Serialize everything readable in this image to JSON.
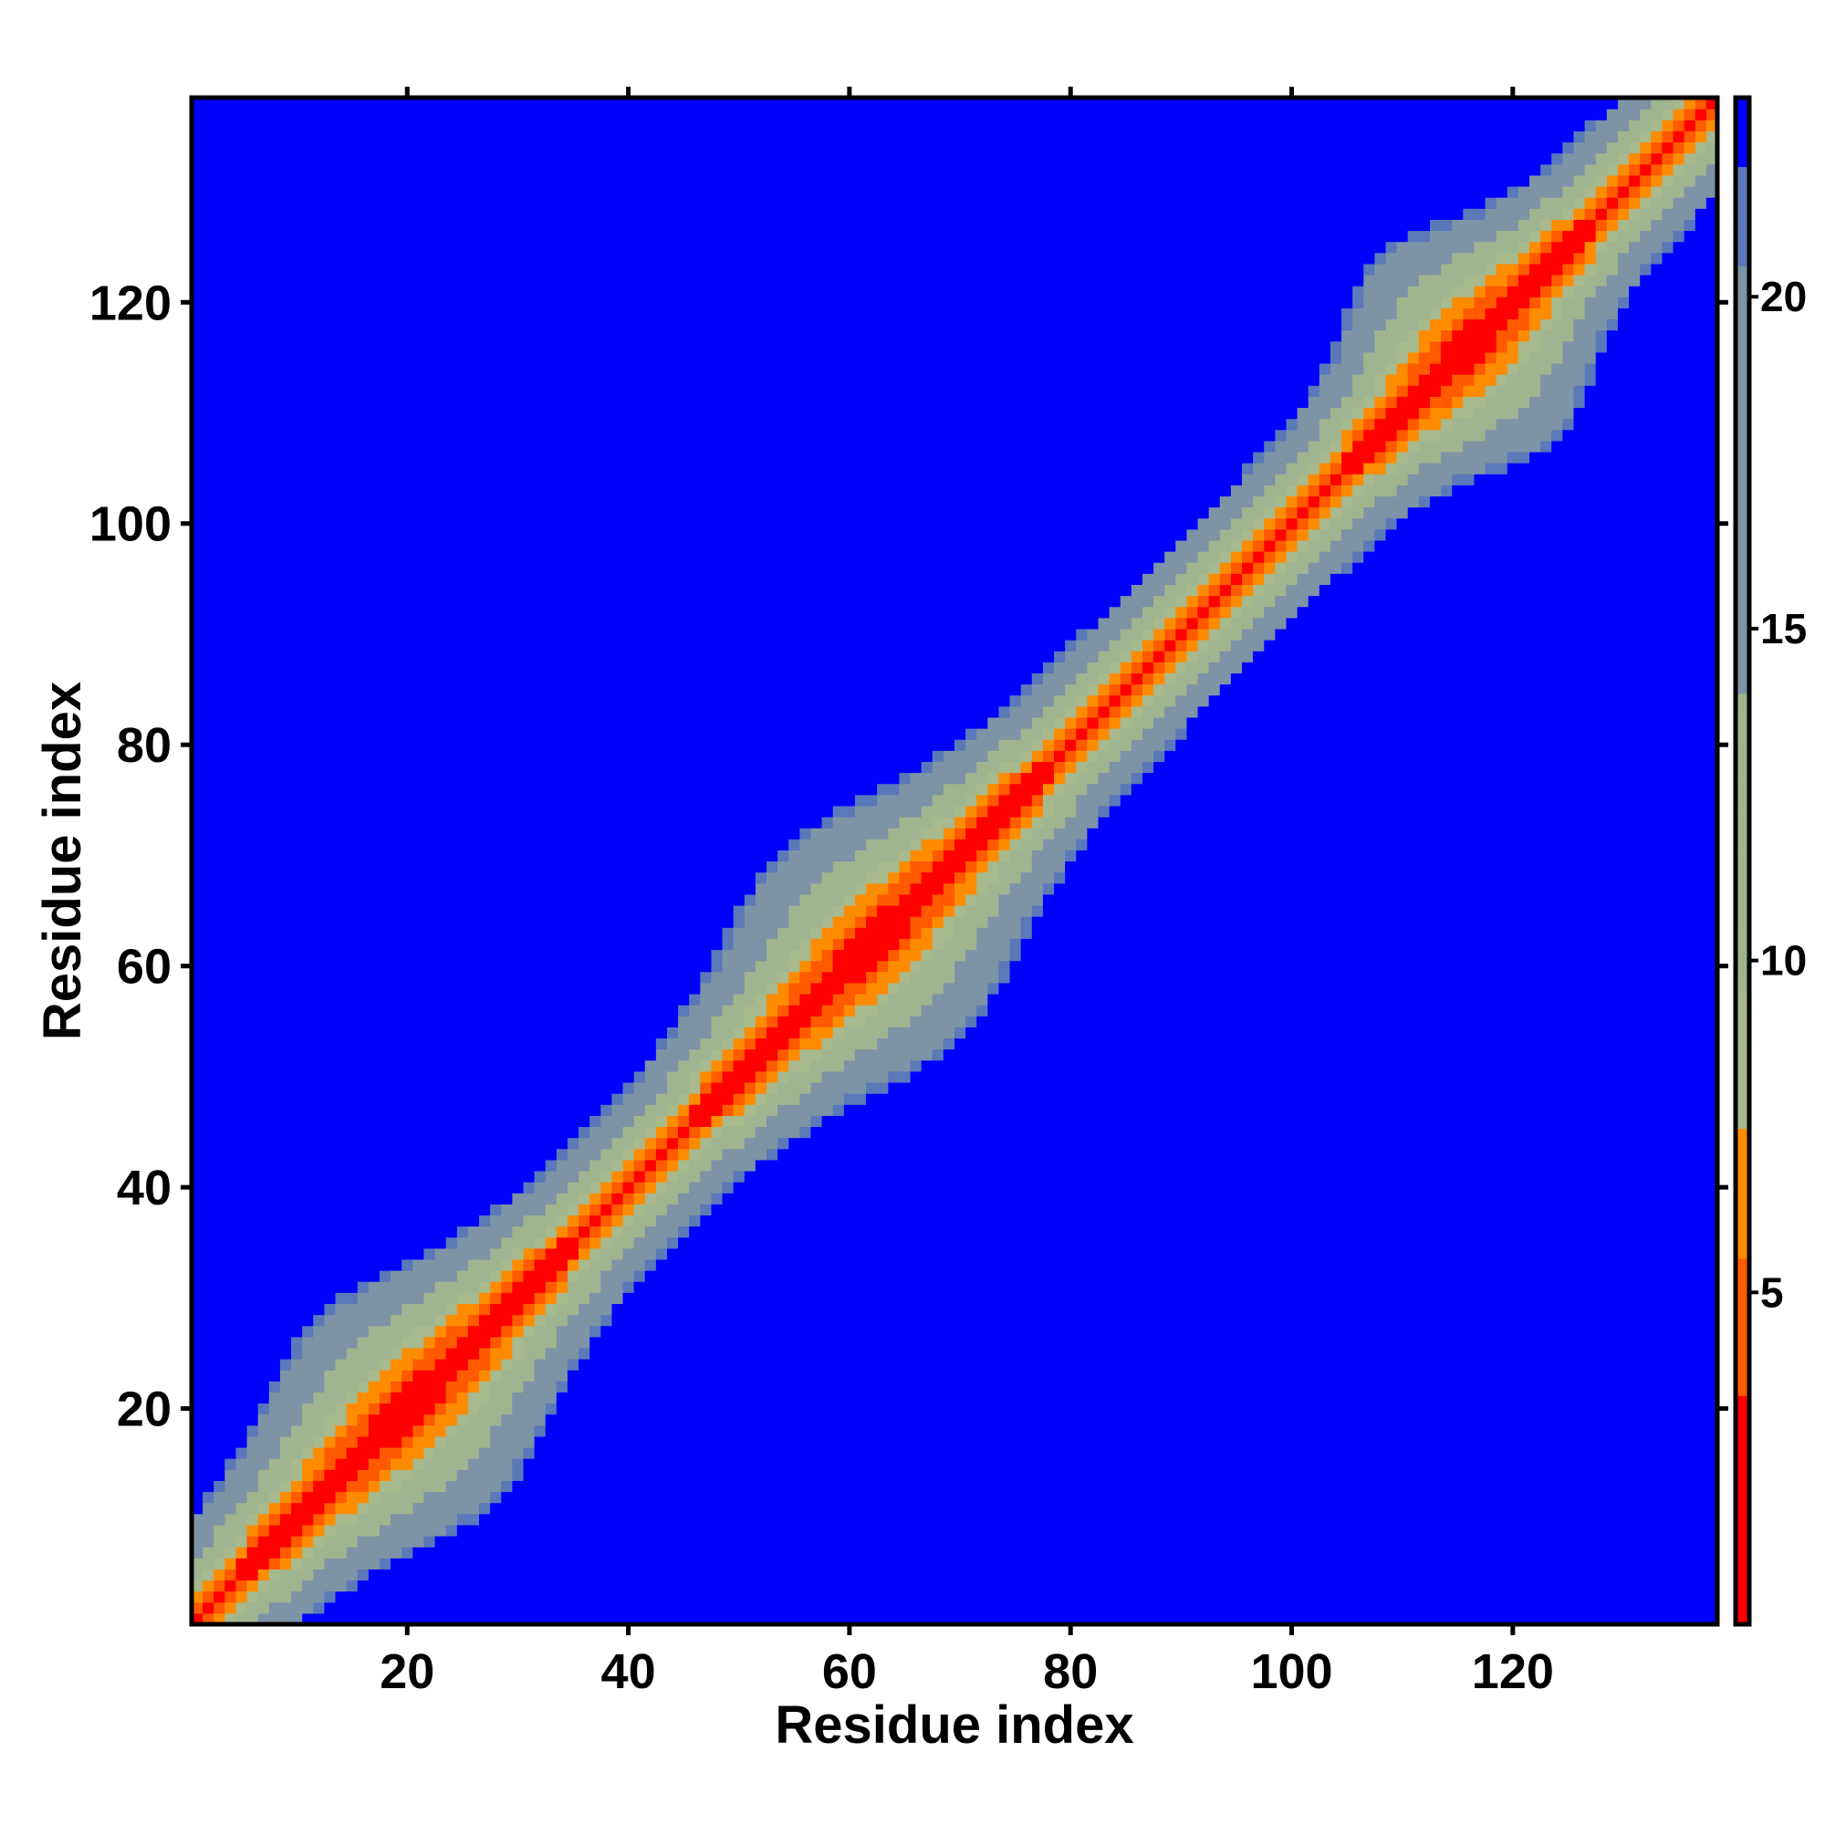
{
  "chart_data": {
    "type": "heatmap",
    "title": "",
    "xlabel": "Residue index",
    "ylabel": "Residue index",
    "n": 138,
    "xlim": [
      1,
      138
    ],
    "ylim": [
      1,
      138
    ],
    "xticks": [
      20,
      40,
      60,
      80,
      100,
      120
    ],
    "yticks": [
      20,
      40,
      60,
      80,
      100,
      120
    ],
    "colorbar": {
      "min": 0,
      "max": 23,
      "ticks": [
        5,
        10,
        15,
        20
      ],
      "scale": [
        {
          "to": 3.5,
          "color": "#ff0000"
        },
        {
          "to": 5.5,
          "color": "#ff5a00"
        },
        {
          "to": 7.5,
          "color": "#ff8c00"
        },
        {
          "to": 9.5,
          "color": "#a7b98d"
        },
        {
          "to": 14.0,
          "color": "#9fb48f"
        },
        {
          "to": 20.5,
          "color": "#7d93a6"
        },
        {
          "to": 22.0,
          "color": "#5b78b9"
        },
        {
          "to": 99,
          "color": "#0000ff"
        }
      ]
    },
    "diagonal": {
      "value": 1.2
    },
    "band": {
      "value_at_offset_1": 3.8,
      "slope": 2.3
    },
    "domains": [
      {
        "center": 20,
        "spread": 11
      },
      {
        "center": 62,
        "spread": 12
      },
      {
        "center": 116,
        "spread": 8
      }
    ],
    "grid": false,
    "legend": "colorbar-right"
  }
}
